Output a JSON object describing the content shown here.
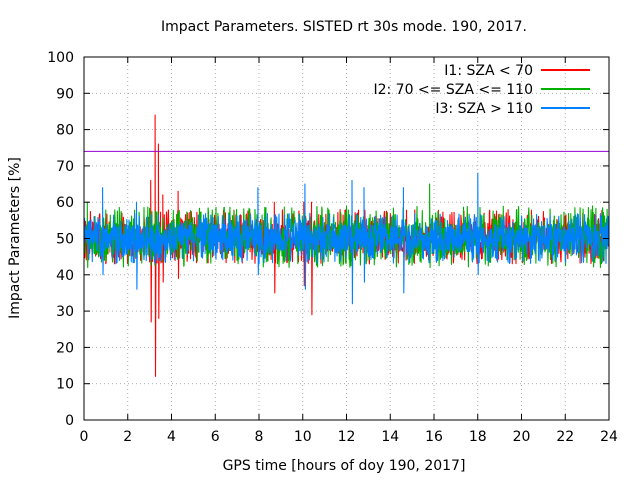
{
  "chart_data": {
    "type": "line",
    "title": "Impact Parameters. SISTED rt 30s mode. 190, 2017.",
    "xlabel": "GPS time [hours of doy 190, 2017]",
    "ylabel": "Impact Parameters [%]",
    "xlim": [
      0,
      24
    ],
    "ylim": [
      0,
      100
    ],
    "xticks": [
      0,
      2,
      4,
      6,
      8,
      10,
      12,
      14,
      16,
      18,
      20,
      22,
      24
    ],
    "yticks": [
      0,
      10,
      20,
      30,
      40,
      50,
      60,
      70,
      80,
      90,
      100
    ],
    "grid": true,
    "legend_position": "top-right",
    "threshold": {
      "value": 74,
      "color": "#9400d3"
    },
    "series": [
      {
        "name": "I1: SZA < 70",
        "color": "#ff0000",
        "baseline": 50,
        "spread": [
          43,
          58
        ],
        "extremes": [
          {
            "x": 3.25,
            "min": 12,
            "max": 84
          },
          {
            "x": 3.05,
            "min": 27,
            "max": 66
          },
          {
            "x": 3.4,
            "min": 28,
            "max": 76
          },
          {
            "x": 3.6,
            "min": 38,
            "max": 62
          },
          {
            "x": 4.3,
            "min": 39,
            "max": 63
          },
          {
            "x": 8.7,
            "min": 35,
            "max": 60
          },
          {
            "x": 10.4,
            "min": 29,
            "max": 60
          },
          {
            "x": 10.05,
            "min": 37,
            "max": 60
          }
        ]
      },
      {
        "name": "I2: 70 <= SZA <= 110",
        "color": "#00b000",
        "baseline": 50,
        "spread": [
          42,
          59
        ],
        "extremes": [
          {
            "x": 15.8,
            "min": 42,
            "max": 65
          },
          {
            "x": 0.15,
            "min": 42,
            "max": 60
          }
        ]
      },
      {
        "name": "I3: SZA > 110",
        "color": "#0080ff",
        "baseline": 50,
        "spread": [
          43,
          57
        ],
        "extremes": [
          {
            "x": 12.25,
            "min": 32,
            "max": 66
          },
          {
            "x": 18.0,
            "min": 40,
            "max": 68
          },
          {
            "x": 0.85,
            "min": 40,
            "max": 64
          },
          {
            "x": 7.95,
            "min": 40,
            "max": 64
          },
          {
            "x": 14.6,
            "min": 35,
            "max": 64
          },
          {
            "x": 10.1,
            "min": 36,
            "max": 65
          },
          {
            "x": 2.4,
            "min": 36,
            "max": 60
          },
          {
            "x": 12.8,
            "min": 38,
            "max": 64
          }
        ]
      }
    ]
  }
}
